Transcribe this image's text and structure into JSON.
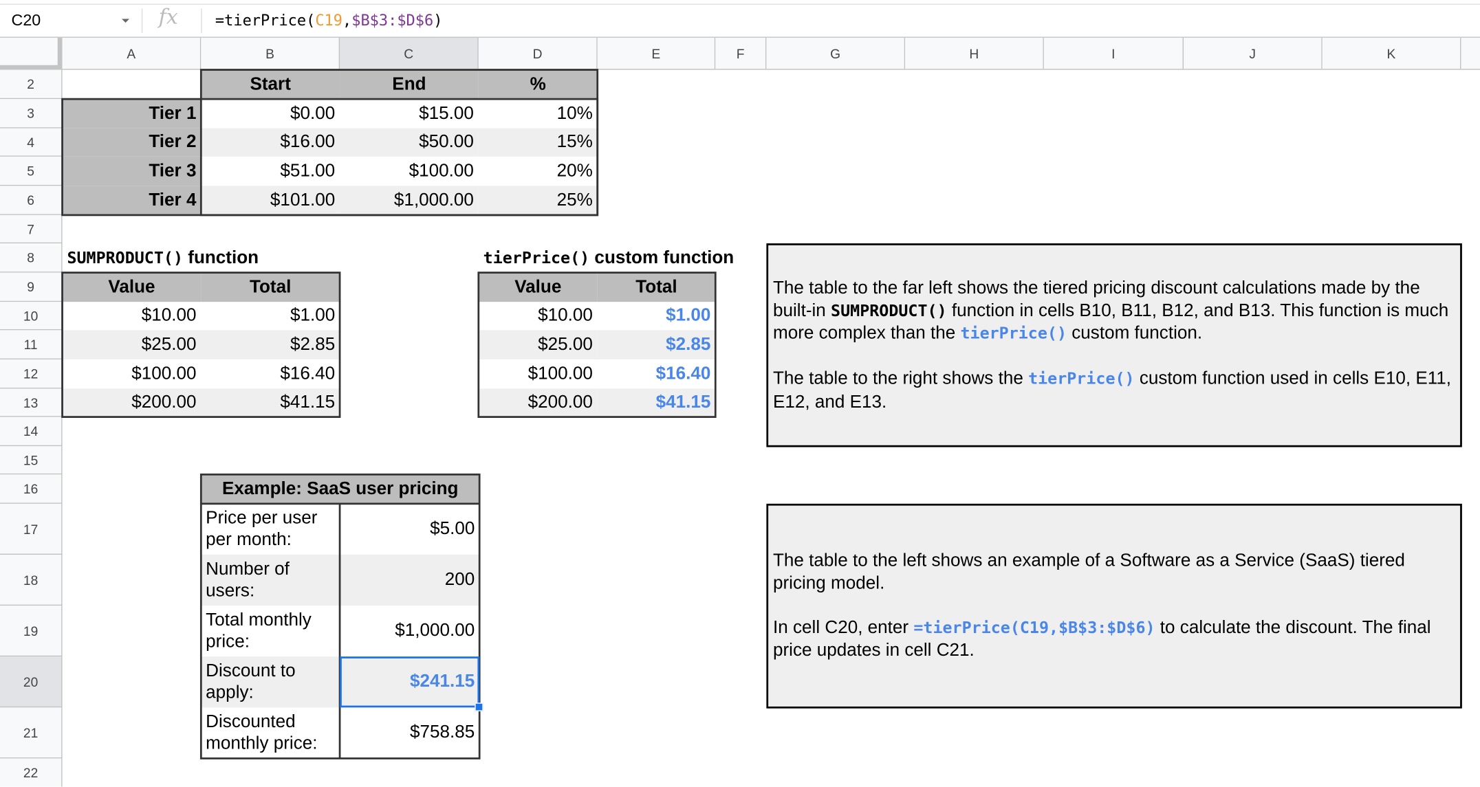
{
  "formula_bar": {
    "name_box": "C20",
    "fx_icon": "fx",
    "formula_prefix": "=tierPrice(",
    "formula_ref1": "C19",
    "formula_comma": ",",
    "formula_ref2": "$B$3:$D$6",
    "formula_suffix": ")",
    "ref1_color": "#f09a37",
    "ref2_color": "#7e3794"
  },
  "columns": [
    "A",
    "B",
    "C",
    "D",
    "E",
    "F",
    "G",
    "H",
    "I",
    "J",
    "K"
  ],
  "selected_column": "C",
  "rows": [
    "2",
    "3",
    "4",
    "5",
    "6",
    "7",
    "8",
    "9",
    "10",
    "11",
    "12",
    "13",
    "14",
    "15",
    "16",
    "17",
    "18",
    "19",
    "20",
    "21",
    "22"
  ],
  "selected_row": "20",
  "tier_table": {
    "headers": [
      "Start",
      "End",
      "%"
    ],
    "rows": [
      {
        "tier": "Tier 1",
        "start": "$0.00",
        "end": "$15.00",
        "pct": "10%"
      },
      {
        "tier": "Tier 2",
        "start": "$16.00",
        "end": "$50.00",
        "pct": "15%"
      },
      {
        "tier": "Tier 3",
        "start": "$51.00",
        "end": "$100.00",
        "pct": "20%"
      },
      {
        "tier": "Tier 4",
        "start": "$101.00",
        "end": "$1,000.00",
        "pct": "25%"
      }
    ]
  },
  "sumproduct_table": {
    "title_code": "SUMPRODUCT()",
    "title_text": " function",
    "headers": [
      "Value",
      "Total"
    ],
    "rows": [
      {
        "value": "$10.00",
        "total": "$1.00"
      },
      {
        "value": "$25.00",
        "total": "$2.85"
      },
      {
        "value": "$100.00",
        "total": "$16.40"
      },
      {
        "value": "$200.00",
        "total": "$41.15"
      }
    ]
  },
  "tierprice_table": {
    "title_code": "tierPrice()",
    "title_text": " custom function",
    "headers": [
      "Value",
      "Total"
    ],
    "rows": [
      {
        "value": "$10.00",
        "total": "$1.00"
      },
      {
        "value": "$25.00",
        "total": "$2.85"
      },
      {
        "value": "$100.00",
        "total": "$16.40"
      },
      {
        "value": "$200.00",
        "total": "$41.15"
      }
    ]
  },
  "saas_table": {
    "title": "Example: SaaS user pricing",
    "rows": [
      {
        "label": "Price per user per month:",
        "value": "$5.00"
      },
      {
        "label": "Number of users:",
        "value": "200"
      },
      {
        "label": "Total monthly price:",
        "value": "$1,000.00"
      },
      {
        "label": "Discount to apply:",
        "value": "$241.15"
      },
      {
        "label": "Discounted monthly price:",
        "value": "$758.85"
      }
    ]
  },
  "note1": {
    "p1_a": "The table to the far left shows the tiered pricing discount calculations made by the built-in ",
    "p1_code1": "SUMPRODUCT()",
    "p1_b": " function in cells B10, B11, B12, and B13. This function is much more complex than the ",
    "p1_code2": "tierPrice()",
    "p1_c": " custom function.",
    "p2_a": "The table to the right shows the ",
    "p2_code": "tierPrice()",
    "p2_b": " custom function used in cells E10, E11, E12, and E13."
  },
  "note2": {
    "p1": "The table to the left shows an example of a Software as a Service (SaaS) tiered pricing model.",
    "p2_a": "In cell C20, enter ",
    "p2_code": "=tierPrice(C19,$B$3:$D$6)",
    "p2_b": " to calculate the discount. The final price updates in cell C21."
  },
  "colors": {
    "accent_blue": "#4a86e8",
    "header_gray": "#bdbdbd",
    "band_gray": "#efefef",
    "selection": "#1a73e8"
  }
}
